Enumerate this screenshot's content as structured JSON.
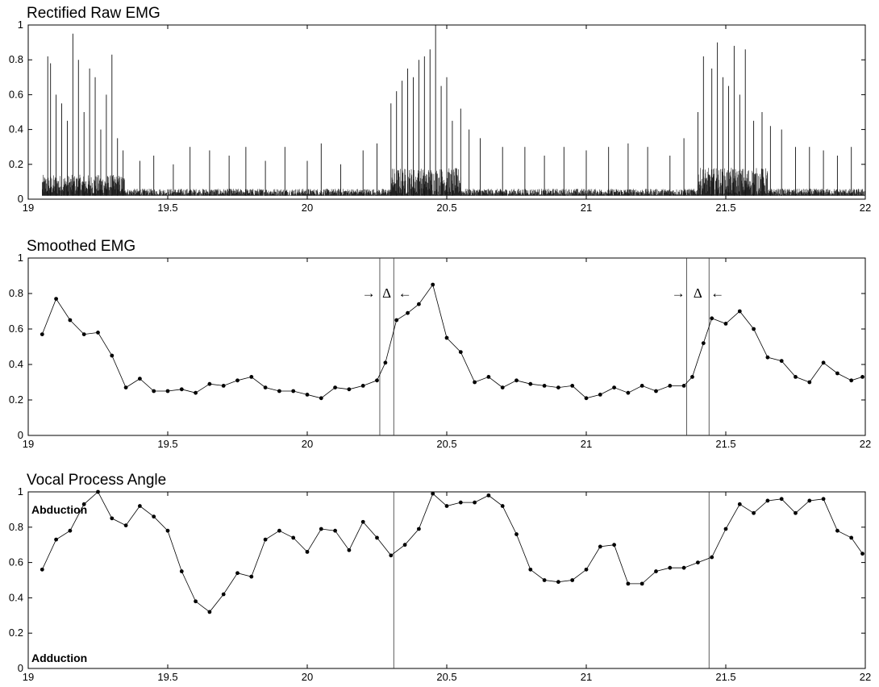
{
  "chart_data": [
    {
      "type": "line",
      "title": "Rectified Raw EMG",
      "xlim": [
        19,
        22
      ],
      "ylim": [
        0,
        1
      ],
      "xticks": [
        19,
        19.5,
        20,
        20.5,
        21,
        21.5,
        22
      ],
      "yticks": [
        0,
        0.2,
        0.4,
        0.6,
        0.8,
        1
      ],
      "xtick_labels": [
        "19",
        "19.5",
        "20",
        "20.5",
        "21",
        "21.5",
        "22"
      ],
      "ytick_labels": [
        "0",
        "0.2",
        "0.4",
        "0.6",
        "0.8",
        "1"
      ],
      "grid": false,
      "series": [
        {
          "style": "dense rectified signal, 19.05–22.0",
          "peaks": {
            "x": [
              19.07,
              19.08,
              19.1,
              19.12,
              19.14,
              19.16,
              19.18,
              19.2,
              19.22,
              19.24,
              19.26,
              19.28,
              19.3,
              19.32,
              19.34,
              19.4,
              19.45,
              19.52,
              19.58,
              19.65,
              19.72,
              19.78,
              19.85,
              19.92,
              20.0,
              20.05,
              20.12,
              20.2,
              20.25,
              20.3,
              20.32,
              20.34,
              20.36,
              20.38,
              20.4,
              20.42,
              20.44,
              20.46,
              20.48,
              20.5,
              20.52,
              20.55,
              20.58,
              20.62,
              20.7,
              20.78,
              20.85,
              20.92,
              21.0,
              21.08,
              21.15,
              21.22,
              21.3,
              21.35,
              21.4,
              21.42,
              21.45,
              21.47,
              21.49,
              21.51,
              21.53,
              21.55,
              21.57,
              21.6,
              21.63,
              21.66,
              21.7,
              21.75,
              21.8,
              21.85,
              21.9,
              21.95
            ],
            "y": [
              0.82,
              0.78,
              0.6,
              0.55,
              0.45,
              0.95,
              0.8,
              0.5,
              0.75,
              0.7,
              0.4,
              0.6,
              0.83,
              0.35,
              0.28,
              0.22,
              0.25,
              0.2,
              0.3,
              0.28,
              0.25,
              0.3,
              0.22,
              0.3,
              0.22,
              0.32,
              0.2,
              0.28,
              0.32,
              0.55,
              0.62,
              0.68,
              0.75,
              0.7,
              0.8,
              0.82,
              0.86,
              1.0,
              0.65,
              0.7,
              0.45,
              0.52,
              0.4,
              0.35,
              0.3,
              0.3,
              0.25,
              0.3,
              0.28,
              0.3,
              0.32,
              0.3,
              0.25,
              0.35,
              0.5,
              0.82,
              0.75,
              0.9,
              0.7,
              0.65,
              0.88,
              0.6,
              0.86,
              0.45,
              0.5,
              0.42,
              0.4,
              0.3,
              0.3,
              0.28,
              0.25,
              0.3
            ]
          }
        }
      ]
    },
    {
      "type": "line",
      "title": "Smoothed EMG",
      "xlim": [
        19,
        22
      ],
      "ylim": [
        0,
        1
      ],
      "xticks": [
        19,
        19.5,
        20,
        20.5,
        21,
        21.5,
        22
      ],
      "yticks": [
        0,
        0.2,
        0.4,
        0.6,
        0.8,
        1
      ],
      "xtick_labels": [
        "19",
        "19.5",
        "20",
        "20.5",
        "21",
        "21.5",
        "22"
      ],
      "ytick_labels": [
        "0",
        "0.2",
        "0.4",
        "0.6",
        "0.8",
        "1"
      ],
      "grid": false,
      "markers": "filled circles",
      "series": [
        {
          "x": [
            19.05,
            19.1,
            19.15,
            19.2,
            19.25,
            19.3,
            19.35,
            19.4,
            19.45,
            19.5,
            19.55,
            19.6,
            19.65,
            19.7,
            19.75,
            19.8,
            19.85,
            19.9,
            19.95,
            20.0,
            20.05,
            20.1,
            20.15,
            20.2,
            20.25,
            20.28,
            20.32,
            20.36,
            20.4,
            20.45,
            20.5,
            20.55,
            20.6,
            20.65,
            20.7,
            20.75,
            20.8,
            20.85,
            20.9,
            20.95,
            21.0,
            21.05,
            21.1,
            21.15,
            21.2,
            21.25,
            21.3,
            21.35,
            21.38,
            21.42,
            21.45,
            21.5,
            21.55,
            21.6,
            21.65,
            21.7,
            21.75,
            21.8,
            21.85,
            21.9,
            21.95,
            21.99
          ],
          "y": [
            0.57,
            0.77,
            0.65,
            0.57,
            0.58,
            0.45,
            0.27,
            0.32,
            0.25,
            0.25,
            0.26,
            0.24,
            0.29,
            0.28,
            0.31,
            0.33,
            0.27,
            0.25,
            0.25,
            0.23,
            0.21,
            0.27,
            0.26,
            0.28,
            0.31,
            0.41,
            0.65,
            0.69,
            0.74,
            0.85,
            0.55,
            0.47,
            0.3,
            0.33,
            0.27,
            0.31,
            0.29,
            0.28,
            0.27,
            0.28,
            0.21,
            0.23,
            0.27,
            0.24,
            0.28,
            0.25,
            0.28,
            0.28,
            0.33,
            0.52,
            0.66,
            0.63,
            0.7,
            0.6,
            0.44,
            0.42,
            0.33,
            0.3,
            0.41,
            0.35,
            0.31,
            0.33
          ]
        }
      ],
      "vertical_lines": [
        20.26,
        20.31,
        21.36,
        21.44
      ],
      "annotations": [
        {
          "text": "→",
          "x": 20.22,
          "y": 0.8
        },
        {
          "text": "Δ",
          "x": 20.285,
          "y": 0.8
        },
        {
          "text": "←",
          "x": 20.35,
          "y": 0.8
        },
        {
          "text": "→",
          "x": 21.33,
          "y": 0.8
        },
        {
          "text": "Δ",
          "x": 21.4,
          "y": 0.8
        },
        {
          "text": "←",
          "x": 21.47,
          "y": 0.8
        }
      ]
    },
    {
      "type": "line",
      "title": "Vocal Process Angle",
      "xlim": [
        19,
        22
      ],
      "ylim": [
        0,
        1
      ],
      "xticks": [
        19,
        19.5,
        20,
        20.5,
        21,
        21.5,
        22
      ],
      "yticks": [
        0,
        0.2,
        0.4,
        0.6,
        0.8,
        1
      ],
      "xtick_labels": [
        "19",
        "19.5",
        "20",
        "20.5",
        "21",
        "21.5",
        "22"
      ],
      "ytick_labels": [
        "0",
        "0.2",
        "0.4",
        "0.6",
        "0.8",
        "1"
      ],
      "grid": false,
      "markers": "filled circles",
      "series": [
        {
          "x": [
            19.05,
            19.1,
            19.15,
            19.2,
            19.25,
            19.3,
            19.35,
            19.4,
            19.45,
            19.5,
            19.55,
            19.6,
            19.65,
            19.7,
            19.75,
            19.8,
            19.85,
            19.9,
            19.95,
            20.0,
            20.05,
            20.1,
            20.15,
            20.2,
            20.25,
            20.3,
            20.35,
            20.4,
            20.45,
            20.5,
            20.55,
            20.6,
            20.65,
            20.7,
            20.75,
            20.8,
            20.85,
            20.9,
            20.95,
            21.0,
            21.05,
            21.1,
            21.15,
            21.2,
            21.25,
            21.3,
            21.35,
            21.4,
            21.45,
            21.5,
            21.55,
            21.6,
            21.65,
            21.7,
            21.75,
            21.8,
            21.85,
            21.9,
            21.95,
            21.99
          ],
          "y": [
            0.56,
            0.73,
            0.78,
            0.93,
            1.0,
            0.85,
            0.81,
            0.92,
            0.86,
            0.78,
            0.55,
            0.38,
            0.32,
            0.42,
            0.54,
            0.52,
            0.73,
            0.78,
            0.74,
            0.66,
            0.79,
            0.78,
            0.67,
            0.83,
            0.74,
            0.64,
            0.7,
            0.79,
            0.99,
            0.92,
            0.94,
            0.94,
            0.98,
            0.92,
            0.76,
            0.56,
            0.5,
            0.49,
            0.5,
            0.56,
            0.69,
            0.7,
            0.48,
            0.48,
            0.55,
            0.57,
            0.57,
            0.6,
            0.63,
            0.79,
            0.93,
            0.88,
            0.95,
            0.96,
            0.88,
            0.95,
            0.96,
            0.78,
            0.74,
            0.65
          ]
        }
      ],
      "vertical_lines": [
        20.31,
        21.44
      ],
      "annotations": [
        {
          "text": "Abduction",
          "x": 19.02,
          "y": 0.9
        },
        {
          "text": "Adduction",
          "x": 19.02,
          "y": 0.06
        }
      ]
    }
  ]
}
